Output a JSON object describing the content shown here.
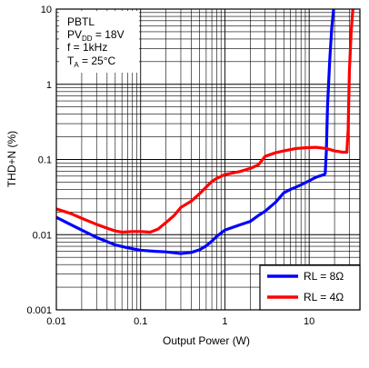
{
  "chart_data": {
    "type": "line",
    "xlabel": "Output Power (W)",
    "ylabel": "THD+N (%)",
    "x_scale": "log",
    "y_scale": "log",
    "xlim": [
      0.01,
      40
    ],
    "ylim": [
      0.001,
      10
    ],
    "x_ticks": [
      {
        "value": 0.01,
        "label": "0.01"
      },
      {
        "value": 0.1,
        "label": "0.1"
      },
      {
        "value": 1,
        "label": "1"
      },
      {
        "value": 10,
        "label": "10"
      }
    ],
    "y_ticks": [
      {
        "value": 0.001,
        "label": "0.001"
      },
      {
        "value": 0.01,
        "label": "0.01"
      },
      {
        "value": 0.1,
        "label": "0.1"
      },
      {
        "value": 1,
        "label": "1"
      },
      {
        "value": 10,
        "label": "10"
      }
    ],
    "grid": true,
    "legend_position": "bottom-right",
    "conditions": {
      "line1": "PBTL",
      "line2_main": "PV",
      "line2_sub": "DD",
      "line2_rest": " = 18V",
      "line3": "f = 1kHz",
      "line4_main": "T",
      "line4_sub": "A",
      "line4_rest": " = 25°C"
    },
    "series": [
      {
        "name": "RL = 8Ω",
        "color": "#0000ff",
        "points": [
          [
            0.01,
            0.017
          ],
          [
            0.015,
            0.0135
          ],
          [
            0.02,
            0.0115
          ],
          [
            0.03,
            0.0092
          ],
          [
            0.05,
            0.0073
          ],
          [
            0.07,
            0.0067
          ],
          [
            0.1,
            0.0062
          ],
          [
            0.15,
            0.006
          ],
          [
            0.2,
            0.0059
          ],
          [
            0.3,
            0.0056
          ],
          [
            0.4,
            0.0058
          ],
          [
            0.5,
            0.0063
          ],
          [
            0.6,
            0.0071
          ],
          [
            0.7,
            0.0082
          ],
          [
            0.8,
            0.0095
          ],
          [
            1.0,
            0.0115
          ],
          [
            1.5,
            0.0135
          ],
          [
            2.0,
            0.015
          ],
          [
            2.5,
            0.018
          ],
          [
            3.0,
            0.0205
          ],
          [
            4.0,
            0.027
          ],
          [
            5.0,
            0.036
          ],
          [
            6.0,
            0.04
          ],
          [
            7.0,
            0.043
          ],
          [
            8.0,
            0.046
          ],
          [
            10.0,
            0.052
          ],
          [
            12.0,
            0.058
          ],
          [
            15.0,
            0.063
          ],
          [
            15.5,
            0.065
          ],
          [
            16.0,
            0.13
          ],
          [
            16.5,
            0.5
          ],
          [
            17.5,
            2.0
          ],
          [
            18.5,
            5.5
          ],
          [
            19.5,
            10.0
          ]
        ]
      },
      {
        "name": "RL = 4Ω",
        "color": "#ff0000",
        "points": [
          [
            0.01,
            0.022
          ],
          [
            0.015,
            0.019
          ],
          [
            0.02,
            0.0165
          ],
          [
            0.03,
            0.0137
          ],
          [
            0.04,
            0.0122
          ],
          [
            0.05,
            0.0112
          ],
          [
            0.06,
            0.0108
          ],
          [
            0.08,
            0.011
          ],
          [
            0.1,
            0.011
          ],
          [
            0.13,
            0.0108
          ],
          [
            0.16,
            0.0118
          ],
          [
            0.2,
            0.0145
          ],
          [
            0.25,
            0.018
          ],
          [
            0.3,
            0.023
          ],
          [
            0.4,
            0.028
          ],
          [
            0.5,
            0.035
          ],
          [
            0.6,
            0.043
          ],
          [
            0.7,
            0.051
          ],
          [
            0.8,
            0.056
          ],
          [
            1.0,
            0.063
          ],
          [
            1.5,
            0.069
          ],
          [
            2.0,
            0.076
          ],
          [
            2.5,
            0.085
          ],
          [
            3.0,
            0.11
          ],
          [
            4.0,
            0.123
          ],
          [
            5.0,
            0.13
          ],
          [
            7.0,
            0.14
          ],
          [
            9.0,
            0.143
          ],
          [
            12.0,
            0.145
          ],
          [
            16.0,
            0.14
          ],
          [
            20.0,
            0.13
          ],
          [
            25.0,
            0.125
          ],
          [
            28.0,
            0.125
          ],
          [
            29.0,
            0.25
          ],
          [
            30.0,
            1.5
          ],
          [
            31.5,
            5.0
          ],
          [
            33.0,
            10.0
          ]
        ]
      }
    ]
  }
}
